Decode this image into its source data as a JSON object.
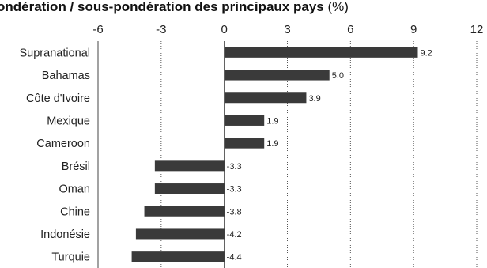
{
  "chart_data": {
    "type": "bar",
    "orientation": "horizontal",
    "title": "ondération / sous-pondération des principaux pays",
    "title_unit": "(%)",
    "xlabel": "",
    "ylabel": "",
    "xlim": [
      -6,
      12
    ],
    "ticks": [
      -6,
      -3,
      0,
      3,
      6,
      9,
      12
    ],
    "tick_labels": [
      "-6",
      "-3",
      "0",
      "3",
      "6",
      "9",
      "12"
    ],
    "grid": "vertical dotted",
    "legend": "none",
    "bar_color": "#3a3a3a",
    "categories": [
      "Supranational",
      "Bahamas",
      "Côte d'Ivoire",
      "Mexique",
      "Cameroon",
      "Brésil",
      "Oman",
      "Chine",
      "Indonésie",
      "Turquie"
    ],
    "values": [
      9.2,
      5.0,
      3.9,
      1.9,
      1.9,
      -3.3,
      -3.3,
      -3.8,
      -4.2,
      -4.4
    ],
    "value_labels": [
      "9.2",
      "5.0",
      "3.9",
      "1.9",
      "1.9",
      "-3.3",
      "-3.3",
      "-3.8",
      "-4.2",
      "-4.4"
    ]
  }
}
